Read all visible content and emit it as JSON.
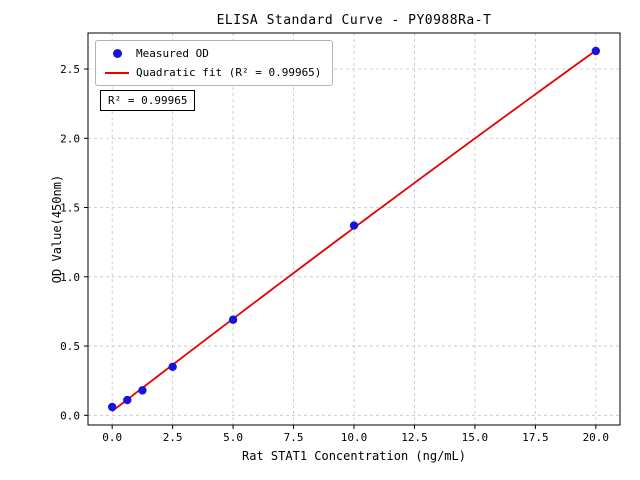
{
  "chart_data": {
    "type": "scatter",
    "title": "ELISA Standard Curve - PY0988Ra-T",
    "xlabel": "Rat STAT1 Concentration (ng/mL)",
    "ylabel": "OD Value(450nm)",
    "xlim": [
      -1.0,
      21.0
    ],
    "ylim": [
      -0.07,
      2.76
    ],
    "xticks": [
      0.0,
      2.5,
      5.0,
      7.5,
      10.0,
      12.5,
      15.0,
      17.5,
      20.0
    ],
    "xtick_labels": [
      "0.0",
      "2.5",
      "5.0",
      "7.5",
      "10.0",
      "12.5",
      "15.0",
      "17.5",
      "20.0"
    ],
    "yticks": [
      0.0,
      0.5,
      1.0,
      1.5,
      2.0,
      2.5
    ],
    "ytick_labels": [
      "0.0",
      "0.5",
      "1.0",
      "1.5",
      "2.0",
      "2.5"
    ],
    "grid": true,
    "legend_position": "upper left",
    "annotation": "R² = 0.99965",
    "series": [
      {
        "name": "Measured OD",
        "type": "scatter",
        "color": "#1414dc",
        "x": [
          0.0,
          0.625,
          1.25,
          2.5,
          5.0,
          10.0,
          20.0
        ],
        "y": [
          0.06,
          0.11,
          0.18,
          0.35,
          0.69,
          1.37,
          2.63
        ]
      },
      {
        "name": "Quadratic fit (R² = 0.99965)",
        "type": "line",
        "fit": "quadratic",
        "color": "#e60000"
      }
    ],
    "colors": {
      "grid": "#c3c3c3",
      "frame": "#000000",
      "background": "#ffffff"
    }
  }
}
